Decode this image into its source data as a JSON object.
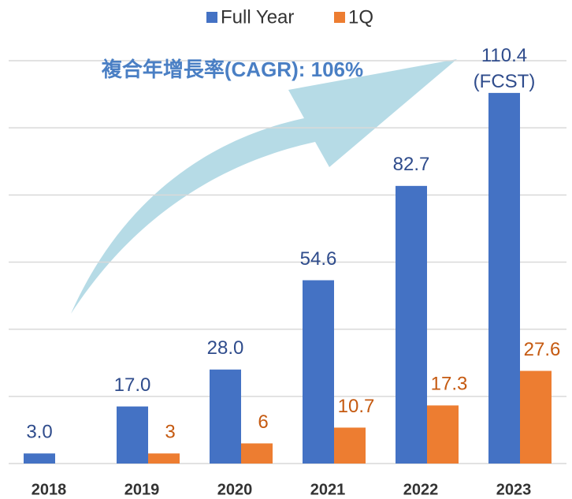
{
  "chart_data": {
    "type": "bar",
    "categories": [
      "2018",
      "2019",
      "2020",
      "2021",
      "2022",
      "2023"
    ],
    "series": [
      {
        "name": "Full Year",
        "color": "#4472c4",
        "values": [
          3.0,
          17.0,
          28.0,
          54.6,
          82.7,
          110.4
        ],
        "value_labels": [
          "3.0",
          "17.0",
          "28.0",
          "54.6",
          "82.7",
          "110.4"
        ]
      },
      {
        "name": "1Q",
        "color": "#ed7d31",
        "values": [
          null,
          3,
          6,
          10.7,
          17.3,
          27.6
        ]
      }
    ],
    "annotations": [
      "複合年增長率(CAGR): 106%",
      "(FCST)"
    ],
    "ylim": [
      0,
      120
    ],
    "yticks": [
      0,
      20,
      40,
      60,
      80,
      100,
      120
    ],
    "grid": true,
    "legend": "top"
  }
}
